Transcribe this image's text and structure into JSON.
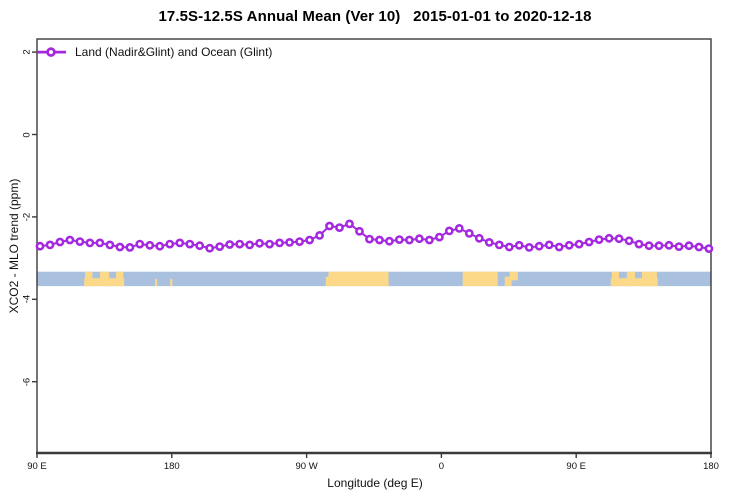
{
  "title": "17.5S-12.5S Annual Mean (Ver 10)   2015-01-01 to 2020-12-18",
  "legend": {
    "label": "Land (Nadir&Glint) and Ocean (Glint)"
  },
  "axes": {
    "x": {
      "label": "Longitude (deg E)",
      "range": [
        90,
        540
      ],
      "ticks": [
        {
          "lon": 90,
          "label": "90 E"
        },
        {
          "lon": 180,
          "label": "180"
        },
        {
          "lon": 270,
          "label": "90 W"
        },
        {
          "lon": 360,
          "label": "0"
        },
        {
          "lon": 450,
          "label": "90 E"
        },
        {
          "lon": 540,
          "label": "180"
        }
      ]
    },
    "y": {
      "label": "XCO2 - MLO trend (ppm)",
      "range": [
        -7.7,
        2.3
      ],
      "ticks": [
        {
          "v": 2,
          "label": "2"
        },
        {
          "v": 0,
          "label": "0"
        },
        {
          "v": -2,
          "label": "-2"
        },
        {
          "v": -4,
          "label": "-4"
        },
        {
          "v": -6,
          "label": "-6"
        }
      ]
    }
  },
  "chart_data": {
    "type": "line",
    "title": "17.5S-12.5S Annual Mean (Ver 10)   2015-01-01 to 2020-12-18",
    "xlabel": "Longitude (deg E)",
    "ylabel": "XCO2 - MLO trend (ppm)",
    "xlim": [
      90,
      540
    ],
    "ylim": [
      -7.7,
      2.3
    ],
    "grid": false,
    "legend_position": "top-left",
    "series": [
      {
        "name": "Land (Nadir&Glint) and Ocean (Glint)",
        "lon_start": 92.0,
        "lon_step": 6.666,
        "values": [
          -2.71,
          -2.68,
          -2.61,
          -2.56,
          -2.6,
          -2.63,
          -2.63,
          -2.68,
          -2.73,
          -2.74,
          -2.66,
          -2.69,
          -2.71,
          -2.66,
          -2.63,
          -2.66,
          -2.7,
          -2.76,
          -2.72,
          -2.67,
          -2.66,
          -2.68,
          -2.64,
          -2.66,
          -2.63,
          -2.62,
          -2.6,
          -2.56,
          -2.45,
          -2.22,
          -2.26,
          -2.17,
          -2.35,
          -2.54,
          -2.56,
          -2.59,
          -2.55,
          -2.56,
          -2.53,
          -2.56,
          -2.49,
          -2.34,
          -2.28,
          -2.4,
          -2.52,
          -2.62,
          -2.68,
          -2.73,
          -2.69,
          -2.74,
          -2.71,
          -2.68,
          -2.73,
          -2.69,
          -2.66,
          -2.61,
          -2.55,
          -2.52,
          -2.53,
          -2.58,
          -2.66,
          -2.7,
          -2.7,
          -2.69,
          -2.72,
          -2.7,
          -2.73,
          -2.77
        ]
      }
    ],
    "map_band": {
      "description": "land/ocean strip for 17.5S-12.5S",
      "top_value": -3.33,
      "bottom_value": -3.68,
      "land_patches_lon": [
        {
          "from": 121.5,
          "to": 148.2,
          "v0": 0.45,
          "v1": 1
        },
        {
          "from": 122.1,
          "to": 127.0,
          "v0": 0,
          "v1": 1
        },
        {
          "from": 132.1,
          "to": 138.2,
          "v0": 0,
          "v1": 1
        },
        {
          "from": 142.8,
          "to": 147.6,
          "v0": 0,
          "v1": 1
        },
        {
          "from": 168.9,
          "to": 170.3,
          "v0": 0.5,
          "v1": 1
        },
        {
          "from": 178.9,
          "to": 180.3,
          "v0": 0.5,
          "v1": 1
        },
        {
          "from": 282.8,
          "to": 284.8,
          "v0": 0.35,
          "v1": 1
        },
        {
          "from": 284.6,
          "to": 324.7,
          "v0": 0,
          "v1": 1
        },
        {
          "from": 374.2,
          "to": 397.6,
          "v0": 0,
          "v1": 1
        },
        {
          "from": 402.3,
          "to": 406.9,
          "v0": 0.35,
          "v1": 1
        },
        {
          "from": 405.6,
          "to": 411.0,
          "v0": 0,
          "v1": 0.6
        },
        {
          "from": 473.1,
          "to": 504.5,
          "v0": 0.45,
          "v1": 1
        },
        {
          "from": 473.8,
          "to": 478.6,
          "v0": 0,
          "v1": 1
        },
        {
          "from": 483.8,
          "to": 489.3,
          "v0": 0,
          "v1": 1
        },
        {
          "from": 493.9,
          "to": 503.9,
          "v0": 0,
          "v1": 1
        }
      ]
    }
  },
  "colors": {
    "series": "#A528E1",
    "marker_fill": "#ffffff",
    "ocean": "#A9C0DE",
    "land": "#FBD989",
    "box": "#3a3a3a",
    "text": "#000000"
  }
}
